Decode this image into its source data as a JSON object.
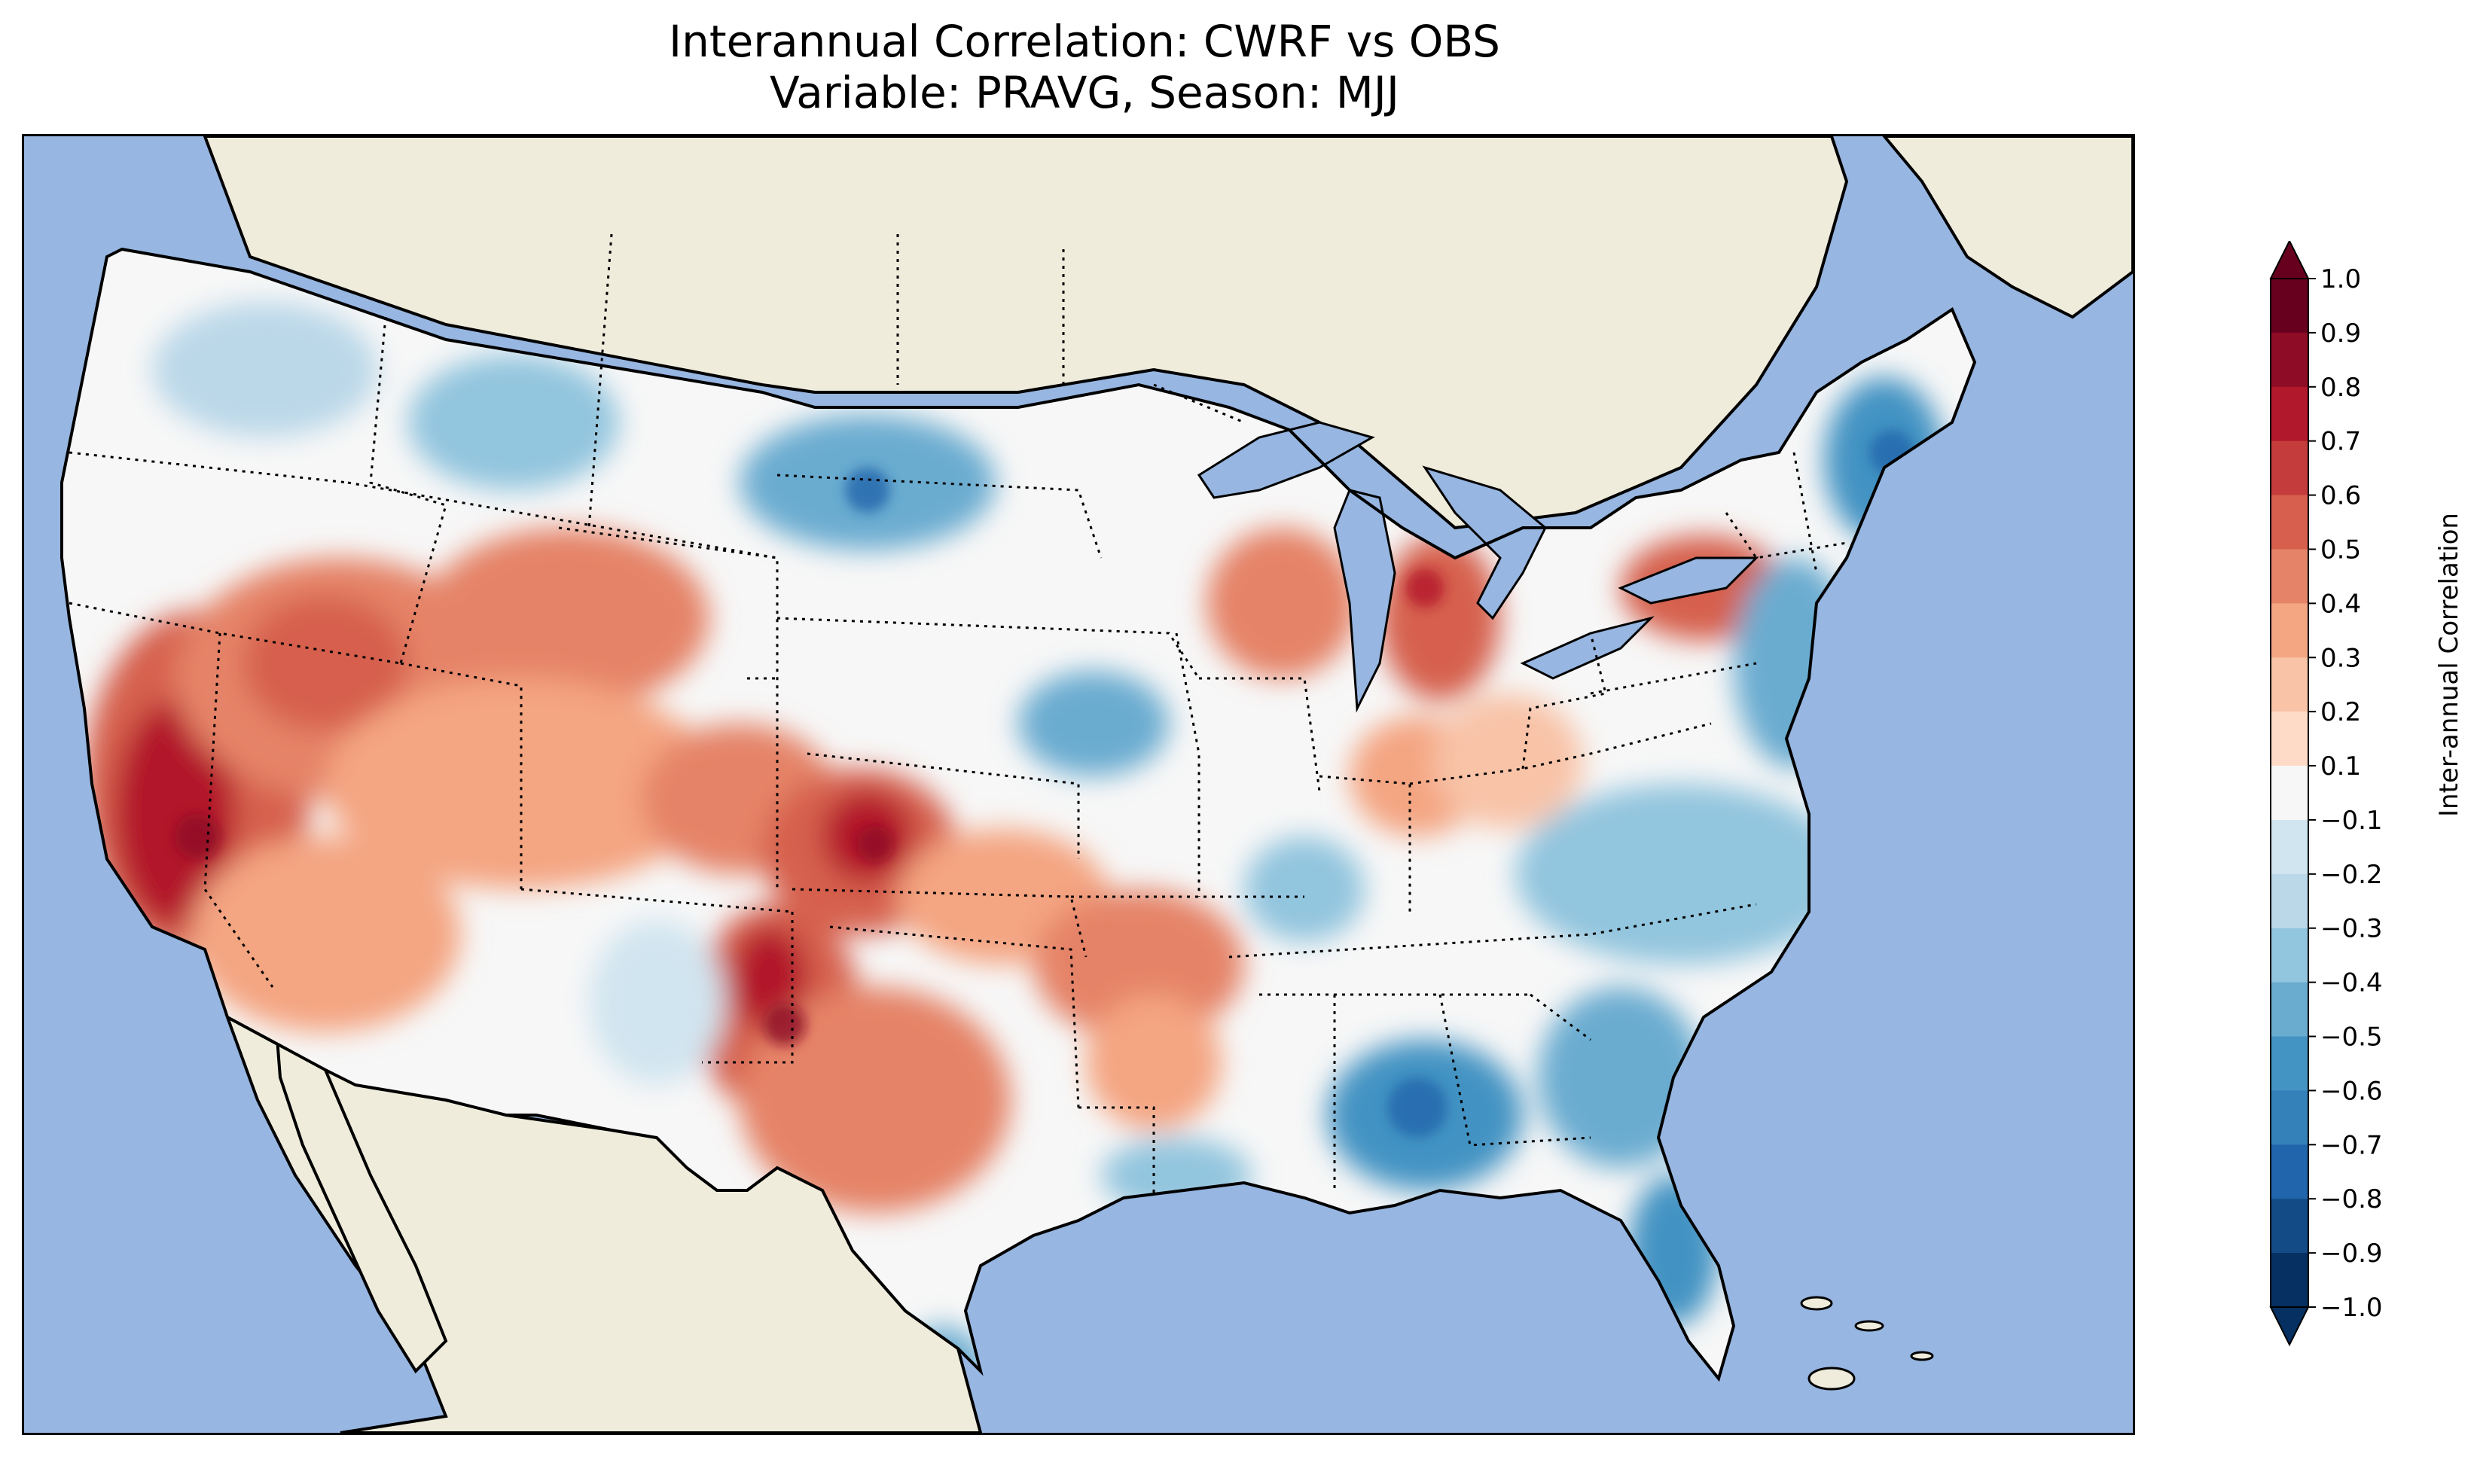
{
  "title": {
    "line1": "Interannual Correlation: CWRF vs OBS",
    "line2": "Variable: PRAVG, Season: MJJ"
  },
  "map": {
    "ocean_color": "#97b6e1",
    "land_color": "#efecdb",
    "border_style": "dotted state boundaries, solid coastline",
    "field": "Inter-annual correlation of PRAVG (MJJ), CWRF vs OBS over CONUS",
    "regions": [
      {
        "label": "Pacific Northwest",
        "sign": "mixed"
      },
      {
        "label": "California / Nevada",
        "sign": "positive (strong)"
      },
      {
        "label": "Great Basin / Colorado Plateau",
        "sign": "positive"
      },
      {
        "label": "Northern Plains (Dakotas)",
        "sign": "negative"
      },
      {
        "label": "Central Plains (Kansas / Oklahoma / Texas Panhandle)",
        "sign": "positive (strong)"
      },
      {
        "label": "Upper Midwest / Michigan",
        "sign": "positive"
      },
      {
        "label": "Southeast",
        "sign": "negative"
      },
      {
        "label": "Northeast / New England",
        "sign": "negative"
      }
    ]
  },
  "colorbar": {
    "label": "Inter-annual Correlation",
    "ticks": [
      "1.0",
      "0.9",
      "0.8",
      "0.7",
      "0.6",
      "0.5",
      "0.4",
      "0.3",
      "0.2",
      "0.1",
      "−0.1",
      "−0.2",
      "−0.3",
      "−0.4",
      "−0.5",
      "−0.6",
      "−0.7",
      "−0.8",
      "−0.9",
      "−1.0"
    ],
    "colors": [
      "#67001f",
      "#8e0c25",
      "#b2182b",
      "#c43c3c",
      "#d6604d",
      "#e58368",
      "#f4a582",
      "#f8c3a7",
      "#fddbc7",
      "#f7f7f7",
      "#d1e5f0",
      "#bbd8e9",
      "#92c5de",
      "#6aacd0",
      "#4393c3",
      "#3480b9",
      "#2166ac",
      "#134b87",
      "#053061"
    ],
    "extend": "both"
  }
}
